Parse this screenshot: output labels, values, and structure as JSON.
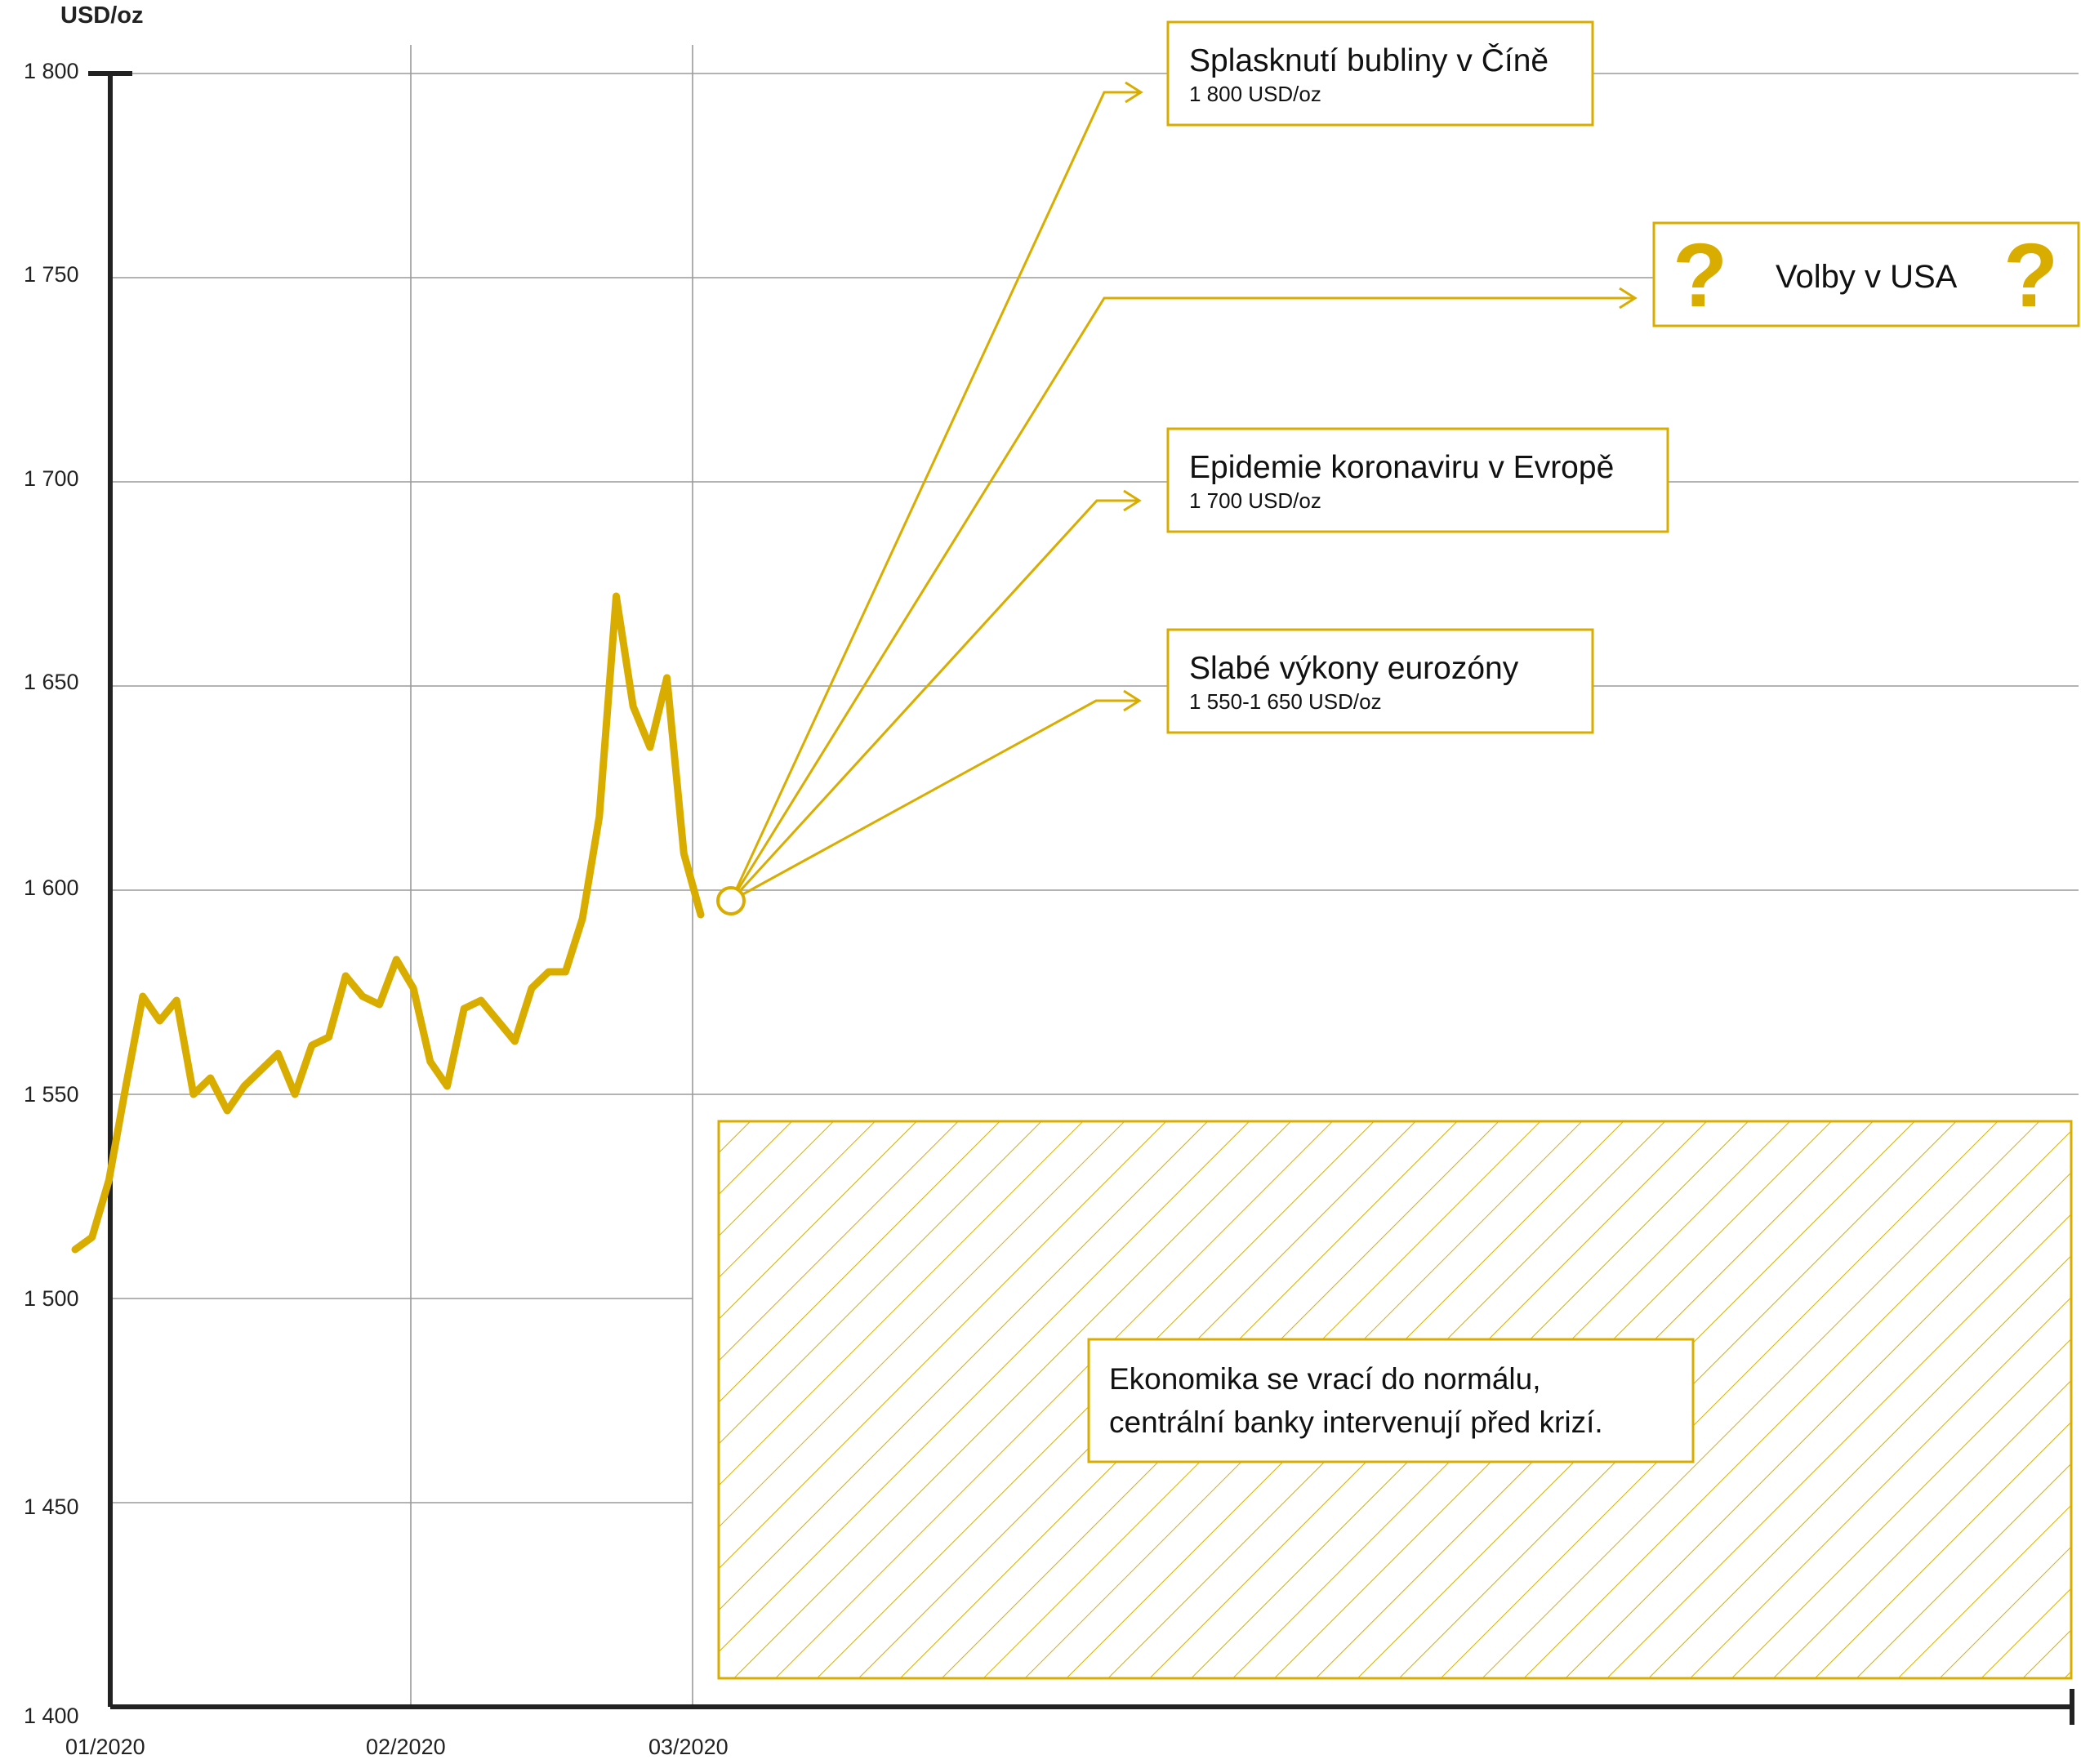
{
  "colors": {
    "accent": "#d9ad00",
    "axis": "#222222",
    "grid": "#9a9a9a"
  },
  "chart_data": {
    "type": "line",
    "ylabel": "USD/oz",
    "ylim": [
      1400,
      1800
    ],
    "yticks": [
      "1 400",
      "1 450",
      "1 500",
      "1 550",
      "1 600",
      "1 650",
      "1 700",
      "1 750",
      "1 800"
    ],
    "ytick_values": [
      1400,
      1450,
      1500,
      1550,
      1600,
      1650,
      1700,
      1750,
      1800
    ],
    "xticks": [
      "01/2020",
      "02/2020",
      "03/2020"
    ],
    "grid": true,
    "series": [
      {
        "values": [
          1512,
          1515,
          1529,
          1552,
          1574,
          1568,
          1573,
          1550,
          1554,
          1546,
          1552,
          1556,
          1560,
          1550,
          1562,
          1564,
          1579,
          1574,
          1572,
          1583,
          1576,
          1558,
          1552,
          1571,
          1573,
          1568,
          1563,
          1576,
          1580,
          1580,
          1593,
          1618,
          1672,
          1645,
          1635,
          1652,
          1609,
          1594
        ]
      }
    ],
    "annotations": [
      {
        "title": "Splasknutí bubliny v Číně",
        "value": "1 800 USD/oz"
      },
      {
        "title": "Volby v USA",
        "marker": "?"
      },
      {
        "title": "Epidemie koronaviru v Evropě",
        "value": "1 700 USD/oz"
      },
      {
        "title": "Slabé výkony eurozóny",
        "value": "1 550-1 650 USD/oz"
      }
    ],
    "scenario_box": {
      "lines": [
        "Ekonomika se vrací do normálu,",
        "centrální banky intervenují před krizí."
      ]
    }
  }
}
